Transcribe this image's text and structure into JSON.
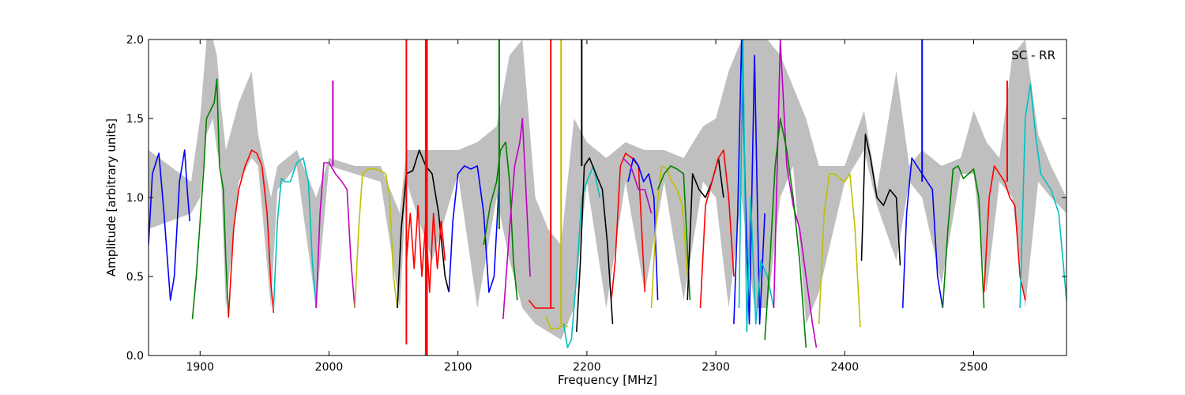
{
  "chart_data": {
    "type": "line",
    "xlabel": "Frequency [MHz]",
    "ylabel": "Amplitude [arbitrary units]",
    "annotation": "SC - RR",
    "xlim": [
      1860,
      2572
    ],
    "ylim": [
      0.0,
      2.0
    ],
    "x_ticks": [
      1900,
      2000,
      2100,
      2200,
      2300,
      2400,
      2500
    ],
    "y_ticks": [
      0.0,
      0.5,
      1.0,
      1.5,
      2.0
    ],
    "x_tick_labels": [
      "1900",
      "2000",
      "2100",
      "2200",
      "2300",
      "2400",
      "2500"
    ],
    "y_tick_labels": [
      "0.0",
      "0.5",
      "1.0",
      "1.5",
      "2.0"
    ],
    "grid": false,
    "reference_band": {
      "color": "#bfbfbf",
      "x": [
        1860,
        1893,
        1900,
        1905,
        1910,
        1913,
        1916,
        1920,
        1930,
        1940,
        1945,
        1955,
        1960,
        1975,
        1990,
        2000,
        2020,
        2040,
        2055,
        2060,
        2080,
        2100,
        2115,
        2130,
        2140,
        2150,
        2160,
        2170,
        2180,
        2190,
        2200,
        2215,
        2230,
        2245,
        2260,
        2275,
        2290,
        2300,
        2310,
        2320,
        2330,
        2340,
        2350,
        2360,
        2370,
        2380,
        2400,
        2415,
        2425,
        2440,
        2450,
        2460,
        2475,
        2490,
        2500,
        2510,
        2520,
        2530,
        2540,
        2550,
        2560,
        2572
      ],
      "upper": [
        1.3,
        1.1,
        1.5,
        2.0,
        2.0,
        1.9,
        1.6,
        1.3,
        1.6,
        1.8,
        1.4,
        1.0,
        1.2,
        1.3,
        1.0,
        1.25,
        1.2,
        1.2,
        0.9,
        1.3,
        1.3,
        1.3,
        1.35,
        1.45,
        1.9,
        2.0,
        1.0,
        0.8,
        0.7,
        1.5,
        1.35,
        1.25,
        1.35,
        1.3,
        1.3,
        1.25,
        1.45,
        1.5,
        1.8,
        2.0,
        2.0,
        2.0,
        1.9,
        1.7,
        1.5,
        1.2,
        1.2,
        1.55,
        1.05,
        1.8,
        1.2,
        1.3,
        1.2,
        1.25,
        1.55,
        1.35,
        1.25,
        1.9,
        2.0,
        1.4,
        1.2,
        1.0
      ],
      "lower": [
        0.8,
        0.9,
        1.0,
        1.4,
        1.5,
        1.3,
        1.2,
        0.3,
        1.1,
        1.25,
        1.2,
        0.3,
        1.05,
        1.2,
        0.3,
        1.2,
        1.15,
        1.1,
        0.3,
        1.1,
        0.6,
        1.15,
        0.3,
        1.0,
        0.6,
        0.3,
        0.2,
        0.15,
        0.1,
        0.3,
        1.1,
        0.3,
        1.1,
        0.4,
        1.1,
        0.35,
        1.1,
        1.0,
        0.3,
        1.0,
        0.3,
        0.3,
        1.0,
        1.2,
        0.2,
        0.4,
        1.1,
        1.3,
        0.95,
        0.6,
        1.1,
        1.0,
        0.45,
        1.15,
        1.15,
        0.4,
        1.1,
        1.0,
        0.3,
        1.1,
        1.0,
        0.9
      ]
    },
    "series": [
      {
        "color": "#0000ff",
        "x": [
          1860,
          1863,
          1868,
          1872,
          1877,
          1880,
          1884,
          1888,
          1890,
          1892
        ],
        "y": [
          0.7,
          1.15,
          1.28,
          0.9,
          0.35,
          0.5,
          1.1,
          1.3,
          1.05,
          0.85
        ]
      },
      {
        "color": "#008000",
        "x": [
          1894,
          1897,
          1900,
          1903,
          1905,
          1908,
          1911,
          1913,
          1915,
          1918,
          1920,
          1922
        ],
        "y": [
          0.23,
          0.5,
          0.85,
          1.2,
          1.5,
          1.55,
          1.6,
          1.75,
          1.2,
          1.05,
          0.6,
          0.25
        ]
      },
      {
        "color": "#ff0000",
        "x": [
          1922,
          1926,
          1930,
          1935,
          1940,
          1944,
          1948,
          1952,
          1955,
          1957
        ],
        "y": [
          0.24,
          0.8,
          1.05,
          1.2,
          1.3,
          1.28,
          1.2,
          0.9,
          0.45,
          0.27
        ]
      },
      {
        "color": "#00bfbf",
        "x": [
          1957,
          1960,
          1963,
          1966,
          1970,
          1975,
          1980,
          1984,
          1987,
          1990
        ],
        "y": [
          0.3,
          0.85,
          1.12,
          1.1,
          1.1,
          1.22,
          1.25,
          1.1,
          0.6,
          0.3
        ]
      },
      {
        "color": "#bf00bf",
        "x": [
          1990,
          1993,
          1996,
          2000,
          2005,
          2010,
          2014,
          2017,
          2020
        ],
        "y": [
          0.3,
          0.9,
          1.22,
          1.22,
          1.15,
          1.1,
          1.05,
          0.6,
          0.3
        ]
      },
      {
        "color": "#bfbf00",
        "x": [
          2020,
          2023,
          2026,
          2030,
          2035,
          2040,
          2044,
          2047,
          2050,
          2053
        ],
        "y": [
          0.3,
          0.8,
          1.15,
          1.18,
          1.18,
          1.17,
          1.15,
          1.0,
          0.5,
          0.3
        ]
      },
      {
        "color": "#000000",
        "x": [
          2053,
          2056,
          2060,
          2065,
          2070,
          2075,
          2080,
          2085,
          2090,
          2093
        ],
        "y": [
          0.3,
          0.8,
          1.15,
          1.17,
          1.3,
          1.2,
          1.15,
          0.9,
          0.5,
          0.4
        ]
      },
      {
        "color": "#ff0000",
        "x": [
          2060,
          2063,
          2066,
          2069,
          2072,
          2075,
          2078,
          2081,
          2084,
          2087,
          2090
        ],
        "y": [
          0.6,
          0.9,
          0.55,
          0.95,
          0.5,
          0.85,
          0.4,
          0.9,
          0.55,
          0.85,
          0.6
        ]
      },
      {
        "color": "#0000ff",
        "x": [
          2093,
          2096,
          2100,
          2105,
          2110,
          2115,
          2120,
          2124,
          2128,
          2132
        ],
        "y": [
          0.4,
          0.85,
          1.15,
          1.2,
          1.18,
          1.2,
          0.9,
          0.4,
          0.5,
          1.1
        ]
      },
      {
        "color": "#008000",
        "x": [
          2120,
          2125,
          2130,
          2133,
          2137,
          2140,
          2143,
          2146
        ],
        "y": [
          0.7,
          0.95,
          1.1,
          1.3,
          1.35,
          1.1,
          0.6,
          0.35
        ]
      },
      {
        "color": "#bf00bf",
        "x": [
          2135,
          2140,
          2144,
          2148,
          2150,
          2153,
          2156
        ],
        "y": [
          0.23,
          0.8,
          1.2,
          1.35,
          1.5,
          1.0,
          0.5
        ]
      },
      {
        "color": "#ff0000",
        "x": [
          2155,
          2160,
          2165,
          2170,
          2175
        ],
        "y": [
          0.35,
          0.3,
          0.3,
          0.3,
          0.3
        ]
      },
      {
        "color": "#bfbf00",
        "x": [
          2168,
          2172,
          2178,
          2182,
          2185
        ],
        "y": [
          0.25,
          0.17,
          0.17,
          0.2,
          0.18
        ]
      },
      {
        "color": "#00bfbf",
        "x": [
          2182,
          2185,
          2188,
          2192,
          2196,
          2200,
          2205,
          2210
        ],
        "y": [
          0.2,
          0.05,
          0.1,
          0.5,
          1.0,
          1.1,
          1.2,
          1.0
        ]
      },
      {
        "color": "#000000",
        "x": [
          2192,
          2195,
          2198,
          2202,
          2207,
          2212,
          2216,
          2220
        ],
        "y": [
          0.15,
          0.6,
          1.2,
          1.25,
          1.15,
          1.05,
          0.7,
          0.2
        ]
      },
      {
        "color": "#ff0000",
        "x": [
          2219,
          2222,
          2226,
          2230,
          2235,
          2240,
          2245
        ],
        "y": [
          0.35,
          0.6,
          1.2,
          1.28,
          1.25,
          1.2,
          0.4
        ]
      },
      {
        "color": "#0000ff",
        "x": [
          2232,
          2236,
          2240,
          2244,
          2248,
          2252,
          2255
        ],
        "y": [
          1.1,
          1.25,
          1.2,
          1.1,
          1.15,
          1.0,
          0.35
        ]
      },
      {
        "color": "#bf00bf",
        "x": [
          2228,
          2234,
          2240,
          2245,
          2250
        ],
        "y": [
          1.25,
          1.2,
          1.05,
          1.05,
          0.9
        ]
      },
      {
        "color": "#bfbf00",
        "x": [
          2250,
          2254,
          2258,
          2262,
          2266,
          2270,
          2274,
          2278
        ],
        "y": [
          0.3,
          0.9,
          1.2,
          1.18,
          1.1,
          1.05,
          0.95,
          0.5
        ]
      },
      {
        "color": "#008000",
        "x": [
          2255,
          2260,
          2265,
          2270,
          2275,
          2280
        ],
        "y": [
          1.05,
          1.15,
          1.2,
          1.18,
          1.15,
          0.35
        ]
      },
      {
        "color": "#000000",
        "x": [
          2278,
          2282,
          2287,
          2292,
          2297,
          2302,
          2306
        ],
        "y": [
          0.35,
          1.15,
          1.05,
          1.0,
          1.1,
          1.25,
          1.0
        ]
      },
      {
        "color": "#ff0000",
        "x": [
          2288,
          2292,
          2297,
          2302,
          2306,
          2310,
          2314
        ],
        "y": [
          0.3,
          0.95,
          1.1,
          1.25,
          1.3,
          1.0,
          0.5
        ]
      },
      {
        "color": "#0000ff",
        "x": [
          2314,
          2317,
          2320,
          2323,
          2326,
          2330,
          2334,
          2338
        ],
        "y": [
          0.2,
          0.9,
          2.0,
          1.0,
          0.2,
          1.9,
          0.2,
          0.9
        ]
      },
      {
        "color": "#00bfbf",
        "x": [
          2318,
          2321,
          2324,
          2327,
          2331,
          2335,
          2340,
          2345
        ],
        "y": [
          0.3,
          2.0,
          0.15,
          1.0,
          0.2,
          0.6,
          0.5,
          0.3
        ]
      },
      {
        "color": "#bf00bf",
        "x": [
          2345,
          2350,
          2355,
          2360,
          2365,
          2370,
          2375,
          2378
        ],
        "y": [
          0.3,
          2.0,
          1.2,
          0.95,
          0.8,
          0.5,
          0.2,
          0.05
        ]
      },
      {
        "color": "#008000",
        "x": [
          2338,
          2342,
          2346,
          2350,
          2355,
          2360,
          2365,
          2370
        ],
        "y": [
          0.1,
          0.6,
          1.2,
          1.5,
          1.3,
          1.0,
          0.6,
          0.05
        ]
      },
      {
        "color": "#bfbf00",
        "x": [
          2380,
          2384,
          2388,
          2392,
          2396,
          2400,
          2404,
          2408,
          2412
        ],
        "y": [
          0.2,
          0.9,
          1.15,
          1.15,
          1.12,
          1.1,
          1.15,
          0.8,
          0.18
        ]
      },
      {
        "color": "#000000",
        "x": [
          2413,
          2416,
          2420,
          2425,
          2430,
          2435,
          2440,
          2443
        ],
        "y": [
          0.6,
          1.4,
          1.25,
          1.0,
          0.95,
          1.05,
          1.0,
          0.57
        ]
      },
      {
        "color": "#0000ff",
        "x": [
          2445,
          2448,
          2452,
          2456,
          2460,
          2464,
          2468,
          2472,
          2476
        ],
        "y": [
          0.3,
          0.9,
          1.25,
          1.2,
          1.15,
          1.1,
          1.05,
          0.5,
          0.3
        ]
      },
      {
        "color": "#008000",
        "x": [
          2476,
          2480,
          2484,
          2488,
          2492,
          2496,
          2500,
          2504,
          2508
        ],
        "y": [
          0.3,
          0.8,
          1.18,
          1.2,
          1.12,
          1.15,
          1.18,
          1.0,
          0.3
        ]
      },
      {
        "color": "#ff0000",
        "x": [
          2508,
          2512,
          2516,
          2520,
          2524,
          2528,
          2532,
          2536,
          2540
        ],
        "y": [
          0.4,
          1.0,
          1.2,
          1.15,
          1.1,
          1.0,
          0.95,
          0.5,
          0.35
        ]
      },
      {
        "color": "#00bfbf",
        "x": [
          2536,
          2540,
          2544,
          2548,
          2552,
          2556,
          2560,
          2566,
          2572
        ],
        "y": [
          0.3,
          1.5,
          1.72,
          1.4,
          1.15,
          1.1,
          1.05,
          0.9,
          0.35
        ]
      }
    ],
    "spikes": [
      {
        "color": "#ff0000",
        "x": 2060,
        "y0": 0.07,
        "y1": 2.0
      },
      {
        "color": "#ff0000",
        "x": 2075,
        "y0": 0.0,
        "y1": 2.0
      },
      {
        "color": "#ff0000",
        "x": 2076,
        "y0": 0.0,
        "y1": 2.0
      },
      {
        "color": "#008000",
        "x": 2132,
        "y0": 0.8,
        "y1": 2.0
      },
      {
        "color": "#ff0000",
        "x": 2172,
        "y0": 0.3,
        "y1": 2.0
      },
      {
        "color": "#bfbf00",
        "x": 2180,
        "y0": 0.2,
        "y1": 2.0
      },
      {
        "color": "#000000",
        "x": 2196,
        "y0": 1.2,
        "y1": 2.0
      },
      {
        "color": "#bf00bf",
        "x": 2003,
        "y0": 1.2,
        "y1": 1.74
      },
      {
        "color": "#0000ff",
        "x": 2460,
        "y0": 1.1,
        "y1": 2.0
      },
      {
        "color": "#ff0000",
        "x": 2526,
        "y0": 1.1,
        "y1": 1.74
      }
    ]
  }
}
